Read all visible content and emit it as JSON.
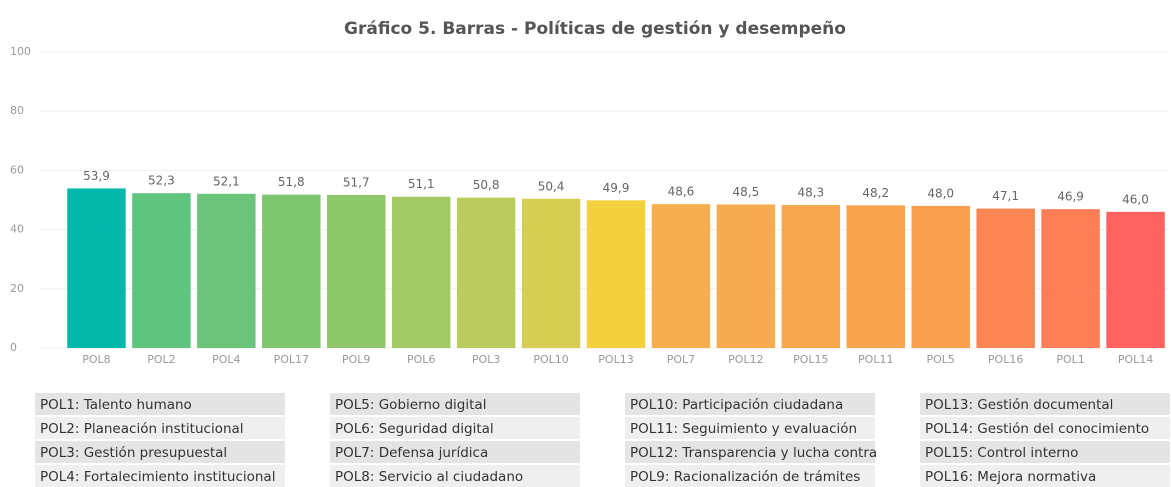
{
  "chart_data": {
    "type": "bar",
    "title": "Gráfico 5. Barras - Políticas de gestión y desempeño",
    "categories": [
      "POL8",
      "POL2",
      "POL4",
      "POL17",
      "POL9",
      "POL6",
      "POL3",
      "POL10",
      "POL13",
      "POL7",
      "POL12",
      "POL15",
      "POL11",
      "POL5",
      "POL16",
      "POL1",
      "POL14"
    ],
    "values": [
      53.9,
      52.3,
      52.1,
      51.8,
      51.7,
      51.1,
      50.8,
      50.4,
      49.9,
      48.6,
      48.5,
      48.3,
      48.2,
      48.0,
      47.1,
      46.9,
      46.0
    ],
    "value_labels": [
      "53,9",
      "52,3",
      "52,1",
      "51,8",
      "51,7",
      "51,1",
      "50,8",
      "50,4",
      "49,9",
      "48,6",
      "48,5",
      "48,3",
      "48,2",
      "48,0",
      "47,1",
      "46,9",
      "46,0"
    ],
    "colors": [
      "#01b8aa",
      "#5fc47d",
      "#6cc47a",
      "#7fc670",
      "#8dc76a",
      "#a2c964",
      "#bccb5d",
      "#d6ce52",
      "#f4d03f",
      "#f6ae4e",
      "#f7aa4f",
      "#f7a84f",
      "#f8a44f",
      "#f9a050",
      "#fc8653",
      "#fd7d56",
      "#fd625e"
    ],
    "ylim": [
      0,
      100
    ],
    "yticks": [
      0,
      20,
      40,
      60,
      80,
      100
    ],
    "grid": true,
    "notes": [
      [
        "POL1: Talento humano",
        "POL2: Planeación institucional",
        "POL3: Gestión presupuestal",
        "POL4: Fortalecimiento institucional"
      ],
      [
        "POL5: Gobierno digital",
        "POL6: Seguridad digital",
        "POL7: Defensa jurídica",
        "POL8: Servicio al ciudadano"
      ],
      [
        "POL10: Participación ciudadana",
        "POL11: Seguimiento y evaluación",
        "POL12: Transparencia y lucha contra",
        "POL9: Racionalización de trámites"
      ],
      [
        "POL13: Gestión documental",
        "POL14: Gestión del conocimiento",
        "POL15: Control interno",
        "POL16: Mejora normativa"
      ]
    ]
  }
}
